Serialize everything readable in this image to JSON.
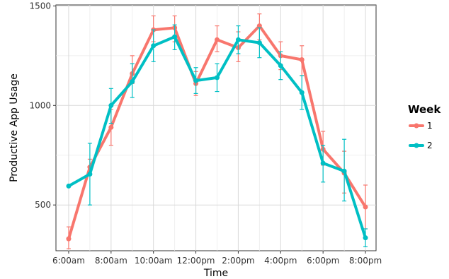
{
  "chart_data": {
    "type": "line",
    "xlabel": "Time",
    "ylabel": "Productive App Usage",
    "x_ticks": [
      "6:00am",
      "8:00am",
      "10:00am",
      "12:00pm",
      "2:00pm",
      "4:00pm",
      "6:00pm",
      "8:00pm"
    ],
    "x_tick_hours": [
      6,
      8,
      10,
      12,
      14,
      16,
      18,
      20
    ],
    "xlim": [
      5.4,
      20.5
    ],
    "y_ticks": [
      500,
      1000,
      1500
    ],
    "ylim": [
      270,
      1505
    ],
    "grid": true,
    "legend": {
      "title": "Week",
      "placement": "right",
      "entries": [
        "1",
        "2"
      ]
    },
    "series": [
      {
        "name": "1",
        "color": "#F8766D",
        "x": [
          6,
          7,
          8,
          9,
          10,
          11,
          12,
          13,
          14,
          15,
          16,
          17,
          18,
          19,
          20
        ],
        "values": [
          330,
          690,
          890,
          1160,
          1380,
          1390,
          1110,
          1330,
          1290,
          1400,
          1250,
          1230,
          780,
          660,
          490
        ],
        "err_low": [
          280,
          650,
          800,
          1110,
          1320,
          1320,
          1050,
          1270,
          1220,
          1330,
          1180,
          1150,
          700,
          560,
          380
        ],
        "err_high": [
          390,
          730,
          980,
          1250,
          1450,
          1450,
          1170,
          1400,
          1370,
          1460,
          1320,
          1300,
          870,
          770,
          600
        ]
      },
      {
        "name": "2",
        "color": "#00BFC4",
        "x": [
          6,
          7,
          8,
          9,
          10,
          11,
          12,
          13,
          14,
          15,
          16,
          17,
          18,
          19,
          20
        ],
        "values": [
          595,
          655,
          1000,
          1120,
          1300,
          1345,
          1125,
          1140,
          1330,
          1315,
          1200,
          1065,
          710,
          670,
          335
        ],
        "err_low": [
          595,
          500,
          910,
          1040,
          1220,
          1280,
          1060,
          1070,
          1260,
          1240,
          1130,
          980,
          615,
          520,
          290
        ],
        "err_high": [
          595,
          810,
          1085,
          1210,
          1380,
          1405,
          1190,
          1210,
          1400,
          1390,
          1270,
          1150,
          800,
          830,
          380
        ]
      }
    ]
  }
}
